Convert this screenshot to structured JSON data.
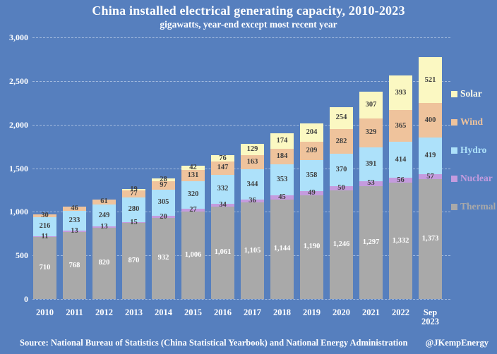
{
  "header": {
    "title": "China installed electrical generating capacity, 2010-2023",
    "subtitle": "gigawatts, year-end except most recent year"
  },
  "chart_data": {
    "type": "bar",
    "stacked": true,
    "unit": "gigawatts",
    "title": "China installed electrical generating capacity, 2010-2023",
    "subtitle": "gigawatts, year-end except most recent year",
    "categories": [
      "2010",
      "2011",
      "2012",
      "2013",
      "2014",
      "2015",
      "2016",
      "2017",
      "2018",
      "2019",
      "2020",
      "2021",
      "2022",
      "Sep 2023"
    ],
    "series": [
      {
        "name": "Thermal",
        "color": "#A9A9A9",
        "label_color": "#FFFFFF",
        "legend_text_color": "#A9A9A9",
        "values": [
          710,
          768,
          820,
          870,
          932,
          1006,
          1061,
          1105,
          1144,
          1190,
          1246,
          1297,
          1332,
          1373
        ]
      },
      {
        "name": "Nuclear",
        "color": "#C49BDE",
        "label_color": "#3F3F3F",
        "legend_text_color": "#C49BDE",
        "values": [
          11,
          13,
          13,
          15,
          20,
          27,
          34,
          36,
          45,
          49,
          50,
          53,
          56,
          57
        ]
      },
      {
        "name": "Hydro",
        "color": "#ADE1FA",
        "label_color": "#3F3F3F",
        "legend_text_color": "#ADE1FA",
        "values": [
          216,
          233,
          249,
          280,
          305,
          320,
          332,
          344,
          353,
          358,
          370,
          391,
          414,
          419
        ]
      },
      {
        "name": "Wind",
        "color": "#EFC39C",
        "label_color": "#3F3F3F",
        "legend_text_color": "#EFC39C",
        "values": [
          30,
          46,
          61,
          77,
          97,
          131,
          147,
          163,
          184,
          209,
          282,
          329,
          365,
          400
        ]
      },
      {
        "name": "Solar",
        "color": "#FBF8C2",
        "label_color": "#3F3F3F",
        "legend_text_color": "#FDFBE8",
        "values": [
          null,
          null,
          null,
          19,
          28,
          42,
          76,
          129,
          174,
          204,
          254,
          307,
          393,
          521
        ]
      }
    ],
    "ylim": [
      0,
      3000
    ],
    "y_ticks": [
      "3,000",
      "2,500",
      "2,000",
      "1,500",
      "1,000",
      "500",
      "0"
    ],
    "grid": true,
    "legend_position": "right",
    "legend_order": [
      "Solar",
      "Wind",
      "Hydro",
      "Nuclear",
      "Thermal"
    ]
  },
  "footer": {
    "source": "Source: National Bureau of Statistics (China Statistical Yearbook) and National Energy Administration",
    "handle": "@JKempEnergy"
  },
  "colors": {
    "background": "#567FBE",
    "title_text": "#FFFFFF",
    "axis_text": "#FFFFFF"
  }
}
